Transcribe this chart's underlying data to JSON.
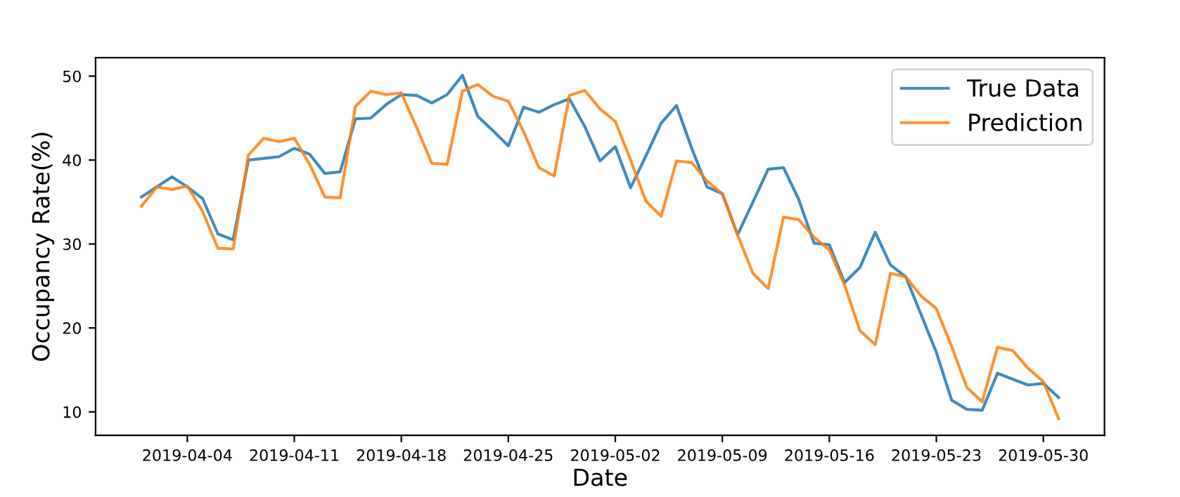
{
  "chart_data": {
    "type": "line",
    "xlabel": "Date",
    "ylabel": "Occupancy Rate(%)",
    "x": [
      "2019-04-01",
      "2019-04-02",
      "2019-04-03",
      "2019-04-04",
      "2019-04-05",
      "2019-04-06",
      "2019-04-07",
      "2019-04-08",
      "2019-04-09",
      "2019-04-10",
      "2019-04-11",
      "2019-04-12",
      "2019-04-13",
      "2019-04-14",
      "2019-04-15",
      "2019-04-16",
      "2019-04-17",
      "2019-04-18",
      "2019-04-19",
      "2019-04-20",
      "2019-04-21",
      "2019-04-22",
      "2019-04-23",
      "2019-04-24",
      "2019-04-25",
      "2019-04-26",
      "2019-04-27",
      "2019-04-28",
      "2019-04-29",
      "2019-04-30",
      "2019-05-01",
      "2019-05-02",
      "2019-05-03",
      "2019-05-04",
      "2019-05-05",
      "2019-05-06",
      "2019-05-07",
      "2019-05-08",
      "2019-05-09",
      "2019-05-10",
      "2019-05-11",
      "2019-05-12",
      "2019-05-13",
      "2019-05-14",
      "2019-05-15",
      "2019-05-16",
      "2019-05-17",
      "2019-05-18",
      "2019-05-19",
      "2019-05-20",
      "2019-05-21",
      "2019-05-22",
      "2019-05-23",
      "2019-05-24",
      "2019-05-25",
      "2019-05-26",
      "2019-05-27",
      "2019-05-28",
      "2019-05-29",
      "2019-05-30",
      "2019-05-31"
    ],
    "series": [
      {
        "name": "True Data",
        "color": "#1f77b4",
        "values": [
          35.6,
          36.8,
          38.0,
          36.8,
          35.4,
          31.2,
          30.5,
          40.0,
          40.2,
          40.4,
          41.4,
          40.7,
          38.4,
          38.6,
          44.9,
          45.0,
          46.6,
          47.8,
          47.7,
          46.8,
          47.8,
          50.1,
          45.2,
          43.5,
          41.7,
          46.3,
          45.7,
          46.6,
          47.3,
          44.0,
          39.9,
          41.6,
          36.7,
          40.5,
          44.4,
          46.5,
          41.4,
          36.8,
          36.0,
          31.1,
          35.0,
          38.9,
          39.1,
          35.3,
          30.1,
          29.9,
          25.4,
          27.2,
          31.4,
          27.5,
          26.1,
          21.6,
          17.1,
          11.4,
          10.3,
          10.2,
          14.6,
          13.9,
          13.2,
          13.4,
          11.7
        ]
      },
      {
        "name": "Prediction",
        "color": "#ff7f0e",
        "values": [
          34.5,
          36.8,
          36.5,
          36.9,
          33.9,
          29.5,
          29.4,
          40.6,
          42.6,
          42.2,
          42.6,
          39.5,
          35.6,
          35.5,
          46.4,
          48.2,
          47.8,
          48.0,
          43.9,
          39.6,
          39.5,
          48.2,
          49.0,
          47.6,
          47.0,
          43.4,
          39.1,
          38.1,
          47.7,
          48.3,
          46.1,
          44.6,
          40.0,
          35.1,
          33.3,
          39.9,
          39.7,
          37.5,
          36.0,
          31.1,
          26.5,
          24.7,
          33.2,
          32.9,
          30.8,
          29.3,
          25.1,
          19.7,
          18.0,
          26.5,
          26.1,
          23.8,
          22.3,
          17.8,
          12.9,
          11.2,
          17.7,
          17.3,
          15.2,
          13.6,
          9.2
        ]
      }
    ],
    "xlim": [
      "2019-03-29",
      "2019-06-03"
    ],
    "xticks": [
      "2019-04-04",
      "2019-04-11",
      "2019-04-18",
      "2019-04-25",
      "2019-05-02",
      "2019-05-09",
      "2019-05-16",
      "2019-05-23",
      "2019-05-30"
    ],
    "ylim": [
      7.2,
      52.2
    ],
    "yticks": [
      10,
      20,
      30,
      40,
      50
    ],
    "grid": false,
    "legend": "top right",
    "marker": "none",
    "line_style": "solid"
  }
}
